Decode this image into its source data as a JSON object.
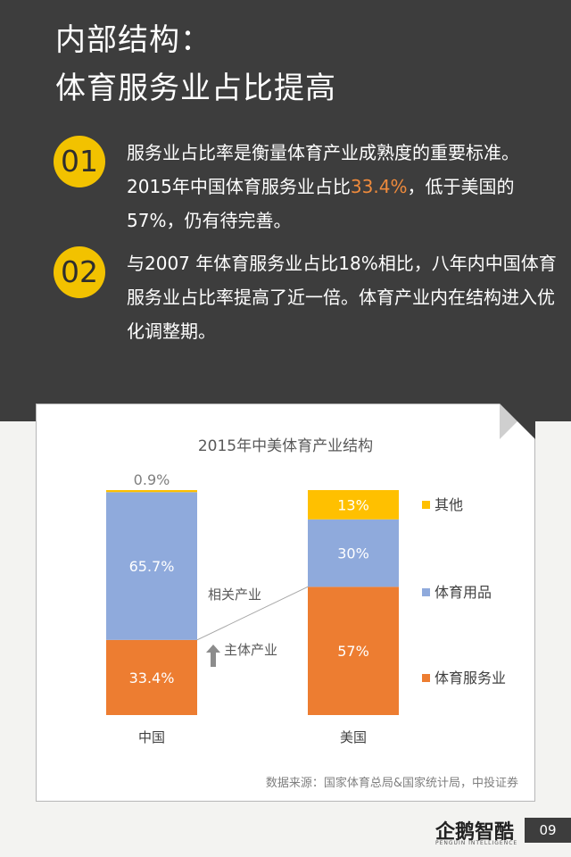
{
  "header": {
    "title_line1": "内部结构：",
    "title_line2": "体育服务业占比提高"
  },
  "points": [
    {
      "badge": "01",
      "text_before": "服务业占比率是衡量体育产业成熟度的重要标准。2015年中国体育服务业占比",
      "highlight": "33.4%",
      "text_after": "，低于美国的57%，仍有待完善。"
    },
    {
      "badge": "02",
      "text": "与2007 年体育服务业占比18%相比，八年内中国体育服务业占比率提高了近一倍。体育产业内在结构进入优化调整期。"
    }
  ],
  "chart_data": {
    "type": "bar",
    "stacked": true,
    "title": "2015年中美体育产业结构",
    "categories": [
      "中国",
      "美国"
    ],
    "series": [
      {
        "name": "体育服务业",
        "values": [
          33.4,
          57
        ],
        "labels": [
          "33.4%",
          "57%"
        ],
        "color": "#ed7d31"
      },
      {
        "name": "体育用品",
        "values": [
          65.7,
          30
        ],
        "labels": [
          "65.7%",
          "30%"
        ],
        "color": "#8faadc"
      },
      {
        "name": "其他",
        "values": [
          0.9,
          13
        ],
        "labels": [
          "0.9%",
          "13%"
        ],
        "color": "#ffc000"
      }
    ],
    "ylim": [
      0,
      100
    ],
    "legend_position": "right",
    "annotations": {
      "related": "相关产业",
      "main": "主体产业"
    },
    "source": "数据来源：国家体育总局&国家统计局，中投证券"
  },
  "footer": {
    "logo": "企鹅智酷",
    "logo_sub": "PENGUIN INTELLIGENCE",
    "page": "09"
  }
}
